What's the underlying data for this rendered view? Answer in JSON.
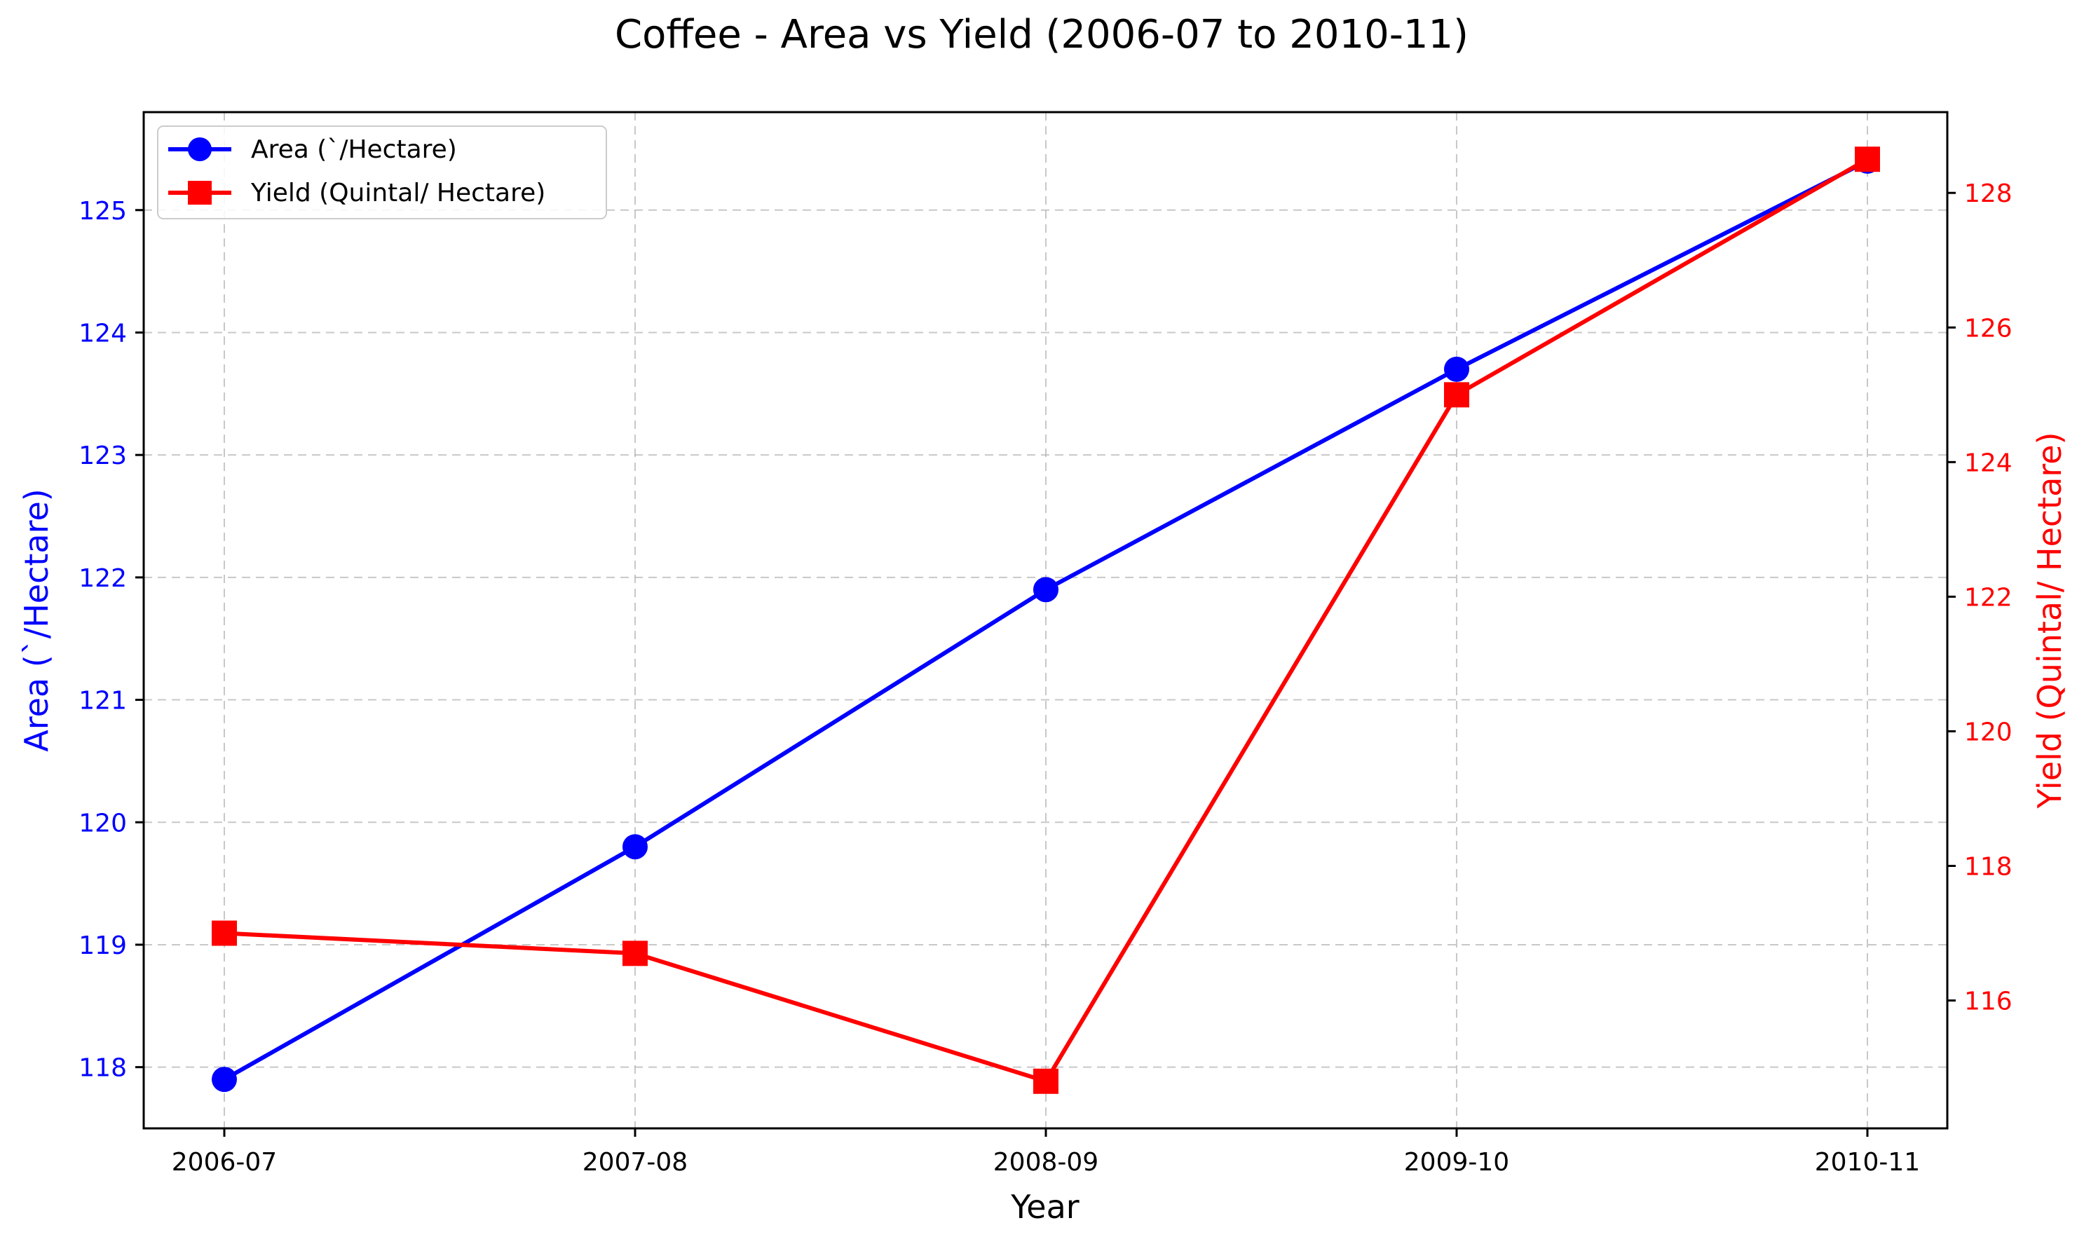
{
  "chart_data": {
    "type": "line",
    "title": "Coffee  - Area vs Yield (2006-07 to 2010-11)",
    "xlabel": "Year",
    "categories": [
      "2006-07",
      "2007-08",
      "2008-09",
      "2009-10",
      "2010-11"
    ],
    "grid": true,
    "legend_position": "top-left",
    "series": [
      {
        "name": "Area (`/Hectare)",
        "axis": "left",
        "values": [
          117.9,
          119.8,
          121.9,
          123.7,
          125.4
        ],
        "color": "#0000ff",
        "marker": "circle"
      },
      {
        "name": "Yield (Quintal/ Hectare)",
        "axis": "right",
        "values": [
          117.0,
          116.7,
          114.8,
          125.0,
          128.5
        ],
        "color": "#ff0000",
        "marker": "square"
      }
    ],
    "y_left": {
      "label": "Area (`/Hectare)",
      "ticks": [
        118,
        119,
        120,
        121,
        122,
        123,
        124,
        125
      ],
      "ylim": [
        117.5,
        125.8
      ],
      "color": "#0000ff"
    },
    "y_right": {
      "label": "Yield (Quintal/ Hectare)",
      "ticks": [
        116,
        118,
        120,
        122,
        124,
        126,
        128
      ],
      "ylim": [
        114.1,
        129.2
      ],
      "color": "#ff0000"
    }
  }
}
